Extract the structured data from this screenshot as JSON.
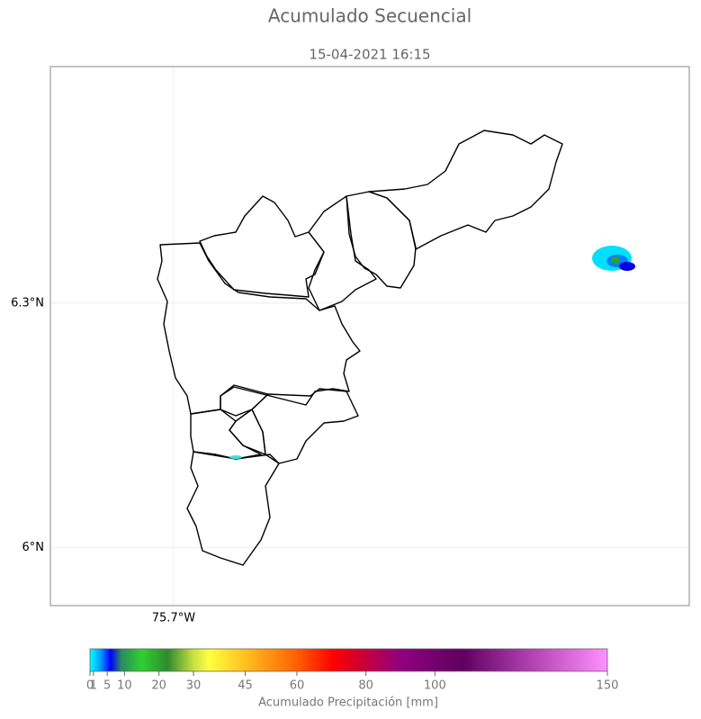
{
  "title": "Acumulado Secuencial",
  "subtitle": "15-04-2021 16:15",
  "map": {
    "xlim": [
      -75.851,
      -75.068
    ],
    "ylim": [
      5.929,
      6.59
    ],
    "xticks": [
      {
        "value": -75.7,
        "label": "75.7°W"
      }
    ],
    "yticks": [
      {
        "value": 6.3,
        "label": "6.3°N"
      },
      {
        "value": 6,
        "label": "6°N"
      }
    ]
  },
  "colorbar": {
    "label": "Acumulado Precipitación [mm]",
    "range": [
      0,
      150
    ],
    "ticks": [
      0,
      1,
      5,
      10,
      20,
      30,
      45,
      60,
      80,
      100,
      150
    ]
  }
}
